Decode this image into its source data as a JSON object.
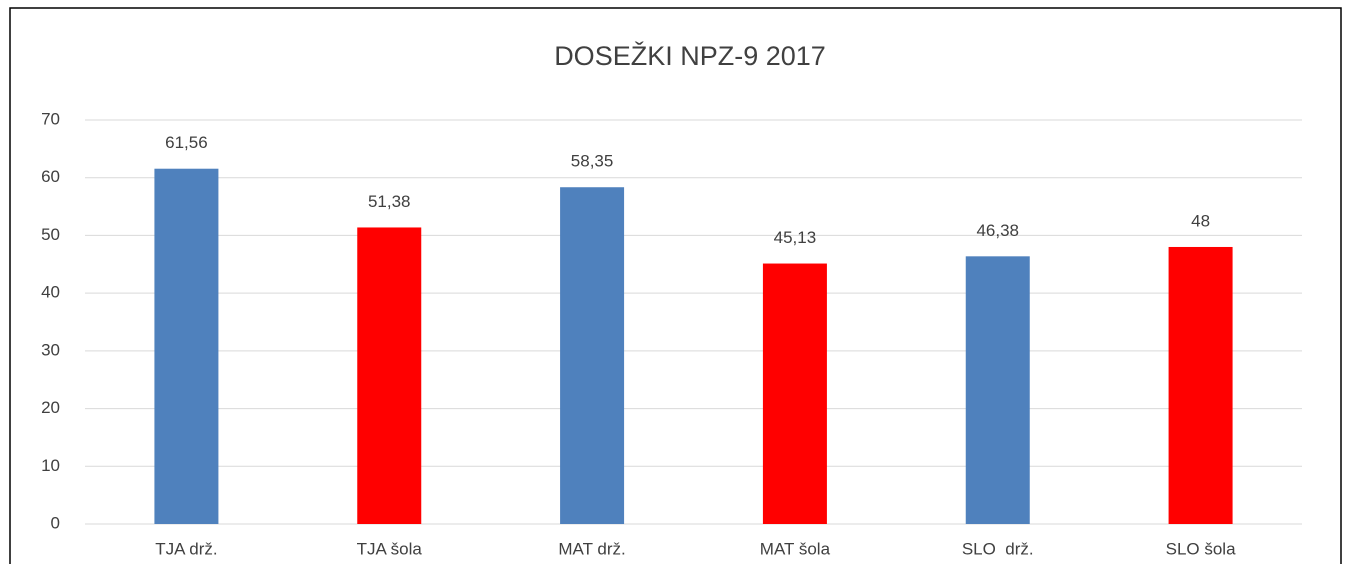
{
  "chart_data": {
    "type": "bar",
    "title": "DOSEŽKI NPZ-9 2017",
    "categories": [
      "TJA drž.",
      "TJA šola",
      "MAT drž.",
      "MAT šola",
      "SLO  drž.",
      "SLO šola"
    ],
    "values": [
      61.56,
      51.38,
      58.35,
      45.13,
      46.38,
      48
    ],
    "value_labels": [
      "61,56",
      "51,38",
      "58,35",
      "45,13",
      "46,38",
      "48"
    ],
    "colors": [
      "#4f81bd",
      "#ff0000",
      "#4f81bd",
      "#ff0000",
      "#4f81bd",
      "#ff0000"
    ],
    "ylim": [
      0,
      70
    ],
    "yticks": [
      0,
      10,
      20,
      30,
      40,
      50,
      60,
      70
    ],
    "grid": true
  }
}
